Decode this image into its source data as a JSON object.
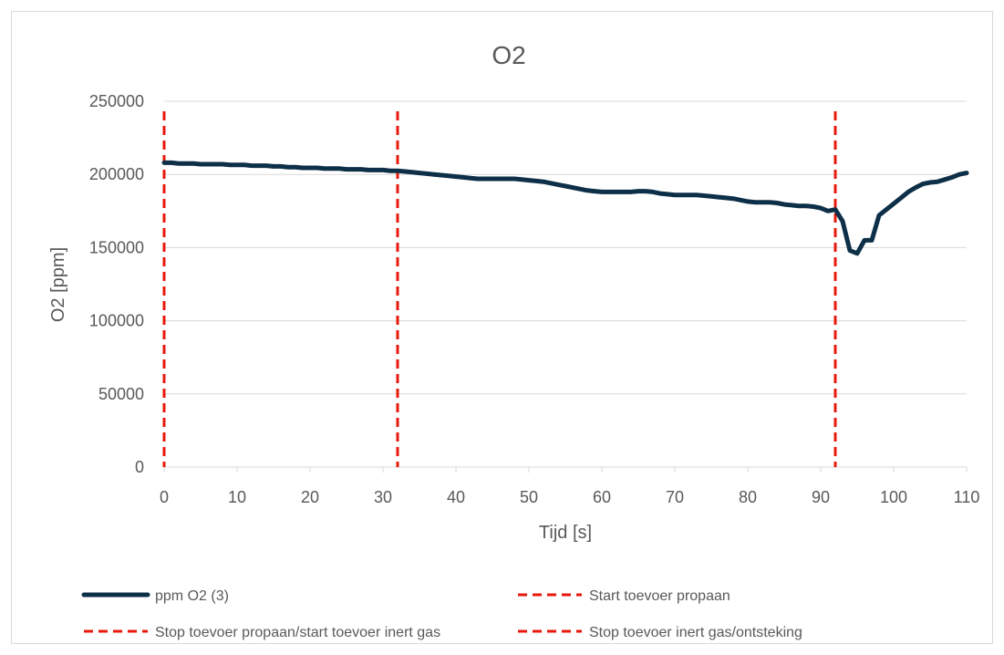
{
  "chart_data": {
    "type": "line",
    "title": "O2",
    "xlabel": "Tijd [s]",
    "ylabel": "O2 [ppm]",
    "xlim": [
      0,
      110
    ],
    "ylim": [
      0,
      250000
    ],
    "xticks": [
      "0",
      "10",
      "20",
      "30",
      "40",
      "50",
      "60",
      "70",
      "80",
      "90",
      "100",
      "110"
    ],
    "yticks": [
      "0",
      "50000",
      "100000",
      "150000",
      "200000",
      "250000"
    ],
    "grid": "horizontal",
    "legend_position": "bottom",
    "colors": {
      "series": "#0d2f47",
      "markers": "#e8180c",
      "grid": "#d9d9d9",
      "text": "#595959"
    },
    "series": [
      {
        "name": "ppm O2 (3)",
        "x": [
          0,
          1,
          2,
          3,
          4,
          5,
          6,
          7,
          8,
          9,
          10,
          11,
          12,
          13,
          14,
          15,
          16,
          17,
          18,
          19,
          20,
          21,
          22,
          23,
          24,
          25,
          26,
          27,
          28,
          29,
          30,
          31,
          32,
          33,
          34,
          35,
          36,
          37,
          38,
          39,
          40,
          41,
          42,
          43,
          44,
          45,
          46,
          47,
          48,
          49,
          50,
          51,
          52,
          53,
          54,
          55,
          56,
          57,
          58,
          59,
          60,
          61,
          62,
          63,
          64,
          65,
          66,
          67,
          68,
          69,
          70,
          71,
          72,
          73,
          74,
          75,
          76,
          77,
          78,
          79,
          80,
          81,
          82,
          83,
          84,
          85,
          86,
          87,
          88,
          89,
          90,
          91,
          92,
          93,
          94,
          95,
          96,
          97,
          98,
          99,
          100,
          101,
          102,
          103,
          104,
          105,
          106,
          107,
          108,
          109,
          110
        ],
        "values": [
          208000,
          208000,
          207500,
          207500,
          207500,
          207000,
          207000,
          207000,
          207000,
          206500,
          206500,
          206500,
          206000,
          206000,
          206000,
          205500,
          205500,
          205000,
          205000,
          204500,
          204500,
          204500,
          204000,
          204000,
          204000,
          203500,
          203500,
          203500,
          203000,
          203000,
          203000,
          202500,
          202500,
          202000,
          201500,
          201000,
          200500,
          200000,
          199500,
          199000,
          198500,
          198000,
          197500,
          197000,
          197000,
          197000,
          197000,
          197000,
          197000,
          196500,
          196000,
          195500,
          195000,
          194000,
          193000,
          192000,
          191000,
          190000,
          189000,
          188500,
          188000,
          188000,
          188000,
          188000,
          188000,
          188500,
          188500,
          188000,
          187000,
          186500,
          186000,
          186000,
          186000,
          186000,
          185500,
          185000,
          184500,
          184000,
          183500,
          182500,
          181500,
          181000,
          181000,
          181000,
          180500,
          179500,
          179000,
          178500,
          178500,
          178000,
          177000,
          175000,
          176000,
          168000,
          148000,
          146000,
          155000,
          155000,
          172000,
          176000,
          180000,
          184000,
          188000,
          191000,
          193500,
          194500,
          195000,
          196500,
          198000,
          200000,
          201000
        ]
      },
      {
        "name": "Start toevoer propaan",
        "x_marker": 0
      },
      {
        "name": "Stop toevoer propaan/start toevoer inert gas",
        "x_marker": 32
      },
      {
        "name": "Stop toevoer inert gas/ontsteking",
        "x_marker": 92
      }
    ]
  }
}
